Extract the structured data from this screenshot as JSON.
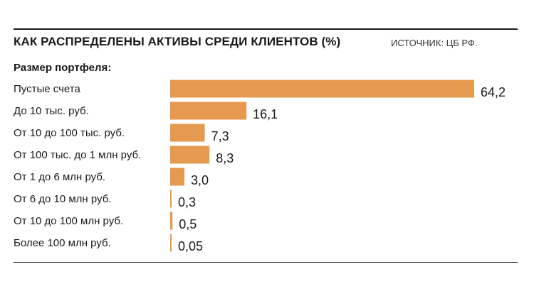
{
  "header": {
    "title": "КАК РАСПРЕДЕЛЕНЫ АКТИВЫ СРЕДИ КЛИЕНТОВ (%)",
    "source": "ИСТОЧНИК: ЦБ РФ."
  },
  "colors": {
    "bar": "#E59A4F",
    "text": "#1a1a1a",
    "rule": "#1a1a1a"
  },
  "chart_data": {
    "type": "bar",
    "orientation": "horizontal",
    "title": "КАК РАСПРЕДЕЛЕНЫ АКТИВЫ СРЕДИ КЛИЕНТОВ (%)",
    "category_axis_title": "Размер портфеля:",
    "categories": [
      "Пустые счета",
      "До 10 тыс. руб.",
      "От 10 до 100 тыс. руб.",
      "От 100 тыс. до 1 млн руб.",
      "От 1 до 6 млн руб.",
      "От 6 до 10 млн руб.",
      "От 10 до 100 млн руб.",
      "Более 100 млн руб."
    ],
    "values": [
      64.2,
      16.1,
      7.3,
      8.3,
      3.0,
      0.3,
      0.5,
      0.05
    ],
    "value_labels": [
      "64,2",
      "16,1",
      "7,3",
      "8,3",
      "3,0",
      "0,3",
      "0,5",
      "0,05"
    ],
    "xlim": [
      0,
      64.2
    ],
    "unit": "%",
    "grid": false,
    "legend": "none"
  }
}
